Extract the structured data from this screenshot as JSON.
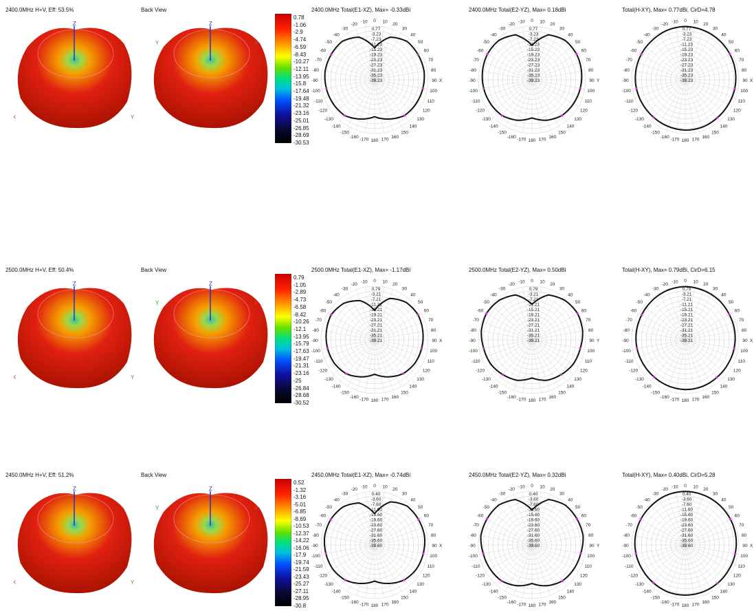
{
  "rows": [
    {
      "title3d": "2400.0MHz H+V, Eff: 53.5%",
      "back": "Back View",
      "colorbar": [
        "0.78",
        "-1.06",
        "-2.9",
        "-4.74",
        "-6.59",
        "-8.43",
        "-10.27",
        "-12.11",
        "-13.95",
        "-15.8",
        "-17.64",
        "-19.48",
        "-21.32",
        "-23.16",
        "-25.01",
        "-26.85",
        "-28.69",
        "-30.53"
      ],
      "polars": [
        {
          "title": "2400.0MHz Total(E1-XZ), Max= -0.33dBi",
          "axis": "X",
          "rings": [
            "0.77",
            "-3.23",
            "-7.23",
            "-11.23",
            "-15.23",
            "-19.23",
            "-23.23",
            "-27.23",
            "-31.23",
            "-35.23",
            "-39.23"
          ]
        },
        {
          "title": "2400.0MHz Total(E2-YZ), Max= 0.18dBi",
          "axis": "Y",
          "rings": [
            "0.77",
            "-3.23",
            "-7.23",
            "-11.23",
            "-15.23",
            "-19.23",
            "-23.23",
            "-27.23",
            "-31.23",
            "-35.23",
            "-39.23"
          ]
        },
        {
          "title": "Total(H-XY), Max= 0.77dBi, CirD=4.78",
          "axis": "X",
          "rings": [
            "0.77",
            "-3.23",
            "-7.23",
            "-11.23",
            "-15.23",
            "-19.23",
            "-23.23",
            "-27.23",
            "-31.23",
            "-35.23",
            "-39.23"
          ]
        }
      ]
    },
    {
      "title3d": "2500.0MHz H+V, Eff: 50.4%",
      "back": "Back View",
      "colorbar": [
        "0.79",
        "-1.05",
        "-2.89",
        "-4.73",
        "-6.58",
        "-8.42",
        "-10.26",
        "-12.1",
        "-13.95",
        "-15.79",
        "-17.63",
        "-19.47",
        "-21.31",
        "-23.16",
        "-25",
        "-26.84",
        "-28.68",
        "-30.52"
      ],
      "polars": [
        {
          "title": "2500.0MHz Total(E1-XZ), Max= -1.17dBi",
          "axis": "X",
          "rings": [
            "0.79",
            "-3.21",
            "-7.21",
            "-11.21",
            "-15.21",
            "-19.21",
            "-23.21",
            "-27.21",
            "-31.21",
            "-35.21",
            "-39.21"
          ]
        },
        {
          "title": "2500.0MHz Total(E2-YZ), Max= 0.50dBi",
          "axis": "Y",
          "rings": [
            "0.79",
            "-3.21",
            "-7.21",
            "-11.21",
            "-15.21",
            "-19.21",
            "-23.21",
            "-27.21",
            "-31.21",
            "-35.21",
            "-39.21"
          ]
        },
        {
          "title": "Total(H-XY), Max= 0.79dBi, CirD=6.15",
          "axis": "X",
          "rings": [
            "0.79",
            "-3.21",
            "-7.21",
            "-11.21",
            "-15.21",
            "-19.21",
            "-23.21",
            "-27.21",
            "-31.21",
            "-35.21",
            "-39.21"
          ]
        }
      ]
    },
    {
      "title3d": "2450.0MHz H+V, Eff: 51.2%",
      "back": "Back View",
      "colorbar": [
        "0.52",
        "-1.32",
        "-3.16",
        "-5.01",
        "-6.85",
        "-8.69",
        "-10.53",
        "-12.37",
        "-14.22",
        "-16.06",
        "-17.9",
        "-19.74",
        "-21.59",
        "-23.43",
        "-25.27",
        "-27.11",
        "-28.95",
        "-30.8"
      ],
      "polars": [
        {
          "title": "2450.0MHz Total(E1-XZ), Max= -0.74dBi",
          "axis": "X",
          "rings": [
            "0.40",
            "-3.60",
            "-7.60",
            "-11.60",
            "-15.60",
            "-19.60",
            "-23.60",
            "-27.60",
            "-31.60",
            "-35.60",
            "-39.60"
          ]
        },
        {
          "title": "2450.0MHz Total(E2-YZ), Max= 0.32dBi",
          "axis": "Y",
          "rings": [
            "0.40",
            "-3.60",
            "-7.60",
            "-11.60",
            "-15.60",
            "-19.60",
            "-23.60",
            "-27.60",
            "-31.60",
            "-35.60",
            "-39.60"
          ]
        },
        {
          "title": "Total(H-XY), Max= 0.40dBi, CirD=5.28",
          "axis": "X",
          "rings": [
            "0.40",
            "-3.60",
            "-7.60",
            "-11.60",
            "-15.60",
            "-19.60",
            "-23.60",
            "-27.60",
            "-31.60",
            "-35.60",
            "-39.60"
          ]
        }
      ]
    }
  ],
  "angle_labels": [
    "0",
    "10",
    "20",
    "30",
    "40",
    "50",
    "60",
    "70",
    "80",
    "90",
    "100",
    "110",
    "120",
    "130",
    "140",
    "150",
    "160",
    "170",
    "180",
    "-170",
    "-160",
    "-150",
    "-140",
    "-130",
    "-120",
    "-110",
    "-100",
    "-90",
    "-80",
    "-70",
    "-60",
    "-50",
    "-40",
    "-30",
    "-20",
    "-10"
  ],
  "axis_labels": {
    "z": "Z",
    "x": "X",
    "y": "Y"
  },
  "colors": {
    "curve": "#111111",
    "grid": "#cccccc",
    "marker": "#cc33cc",
    "pattern_hot": "#e02010",
    "pattern_warm": "#f5a000",
    "pattern_cool": "#40c0a0"
  },
  "chart_data": [
    {
      "type": "line",
      "subtype": "polar",
      "title": "2400.0MHz Total(E1-XZ), Max= -0.33dBi",
      "r_unit": "dBi",
      "theta_deg": [
        0,
        20,
        40,
        60,
        80,
        100,
        120,
        140,
        160,
        180,
        200,
        220,
        240,
        260,
        280,
        300,
        320,
        340
      ],
      "series": [
        {
          "values": [
            -17,
            -6,
            -2,
            -2,
            -2,
            -3,
            -4,
            -5,
            -9,
            -13,
            -9,
            -5,
            -4,
            -3,
            -2,
            -2,
            -2,
            -6
          ]
        }
      ]
    },
    {
      "type": "line",
      "subtype": "polar",
      "title": "2400.0MHz Total(E2-YZ), Max= 0.18dBi",
      "r_unit": "dBi",
      "theta_deg": [
        0,
        20,
        40,
        60,
        80,
        100,
        120,
        140,
        160,
        180,
        200,
        220,
        240,
        260,
        280,
        300,
        320,
        340
      ],
      "series": [
        {
          "values": [
            -15,
            -4,
            -1,
            -1,
            -2,
            -3,
            -4,
            -5,
            -8,
            -12,
            -8,
            -5,
            -4,
            -3,
            -2,
            -1,
            -1,
            -4
          ]
        }
      ]
    },
    {
      "type": "line",
      "subtype": "polar",
      "title": "Total(H-XY), Max= 0.77dBi, CirD=4.78",
      "r_unit": "dBi",
      "theta_deg": [
        0,
        20,
        40,
        60,
        80,
        100,
        120,
        140,
        160,
        180,
        200,
        220,
        240,
        260,
        280,
        300,
        320,
        340
      ],
      "series": [
        {
          "values": [
            0.5,
            0,
            -0.5,
            -1,
            -1.5,
            -2,
            -2.5,
            -2.5,
            -2,
            -2,
            -2.5,
            -3,
            -3,
            -2.5,
            -2,
            -1.5,
            -1,
            0
          ]
        }
      ]
    },
    {
      "type": "line",
      "subtype": "polar",
      "title": "2500.0MHz Total(E1-XZ), Max= -1.17dBi",
      "r_unit": "dBi",
      "theta_deg": [
        0,
        20,
        40,
        60,
        80,
        100,
        120,
        140,
        160,
        180,
        200,
        220,
        240,
        260,
        280,
        300,
        320,
        340
      ],
      "series": [
        {
          "values": [
            -19,
            -7,
            -3,
            -2,
            -3,
            -4,
            -5,
            -7,
            -11,
            -15,
            -11,
            -7,
            -5,
            -4,
            -3,
            -2,
            -4,
            -9
          ]
        }
      ]
    },
    {
      "type": "line",
      "subtype": "polar",
      "title": "2500.0MHz Total(E2-YZ), Max= 0.50dBi",
      "r_unit": "dBi",
      "theta_deg": [
        0,
        20,
        40,
        60,
        80,
        100,
        120,
        140,
        160,
        180,
        200,
        220,
        240,
        260,
        280,
        300,
        320,
        340
      ],
      "series": [
        {
          "values": [
            -14,
            -4,
            -1,
            0,
            -1,
            -3,
            -4,
            -6,
            -8,
            -12,
            -8,
            -6,
            -4,
            -3,
            -1,
            0,
            -1,
            -4
          ]
        }
      ]
    },
    {
      "type": "line",
      "subtype": "polar",
      "title": "Total(H-XY), Max= 0.79dBi, CirD=6.15",
      "r_unit": "dBi",
      "theta_deg": [
        0,
        20,
        40,
        60,
        80,
        100,
        120,
        140,
        160,
        180,
        200,
        220,
        240,
        260,
        280,
        300,
        320,
        340
      ],
      "series": [
        {
          "values": [
            0.5,
            0,
            -0.5,
            -1.5,
            -2,
            -2.5,
            -3,
            -3,
            -2.5,
            -2.5,
            -3,
            -3.5,
            -3.5,
            -3,
            -2.5,
            -2,
            -1,
            0
          ]
        }
      ]
    },
    {
      "type": "line",
      "subtype": "polar",
      "title": "2450.0MHz Total(E1-XZ), Max= -0.74dBi",
      "r_unit": "dBi",
      "theta_deg": [
        0,
        20,
        40,
        60,
        80,
        100,
        120,
        140,
        160,
        180,
        200,
        220,
        240,
        260,
        280,
        300,
        320,
        340
      ],
      "series": [
        {
          "values": [
            -18,
            -6,
            -2,
            -2,
            -2,
            -3,
            -4,
            -6,
            -10,
            -14,
            -10,
            -6,
            -4,
            -3,
            -2,
            -2,
            -3,
            -7
          ]
        }
      ]
    },
    {
      "type": "line",
      "subtype": "polar",
      "title": "2450.0MHz Total(E2-YZ), Max= 0.32dBi",
      "r_unit": "dBi",
      "theta_deg": [
        0,
        20,
        40,
        60,
        80,
        100,
        120,
        140,
        160,
        180,
        200,
        220,
        240,
        260,
        280,
        300,
        320,
        340
      ],
      "series": [
        {
          "values": [
            -15,
            -4,
            -1,
            -1,
            -1,
            -3,
            -4,
            -5,
            -8,
            -12,
            -8,
            -5,
            -4,
            -3,
            -1,
            -1,
            -1,
            -4
          ]
        }
      ]
    },
    {
      "type": "line",
      "subtype": "polar",
      "title": "Total(H-XY), Max= 0.40dBi, CirD=5.28",
      "r_unit": "dBi",
      "theta_deg": [
        0,
        20,
        40,
        60,
        80,
        100,
        120,
        140,
        160,
        180,
        200,
        220,
        240,
        260,
        280,
        300,
        320,
        340
      ],
      "series": [
        {
          "values": [
            0.3,
            0,
            -0.5,
            -1,
            -1.5,
            -2,
            -2.5,
            -2.5,
            -2.5,
            -2.5,
            -2.5,
            -3,
            -3,
            -2.5,
            -2,
            -1.5,
            -1,
            0
          ]
        }
      ]
    }
  ]
}
